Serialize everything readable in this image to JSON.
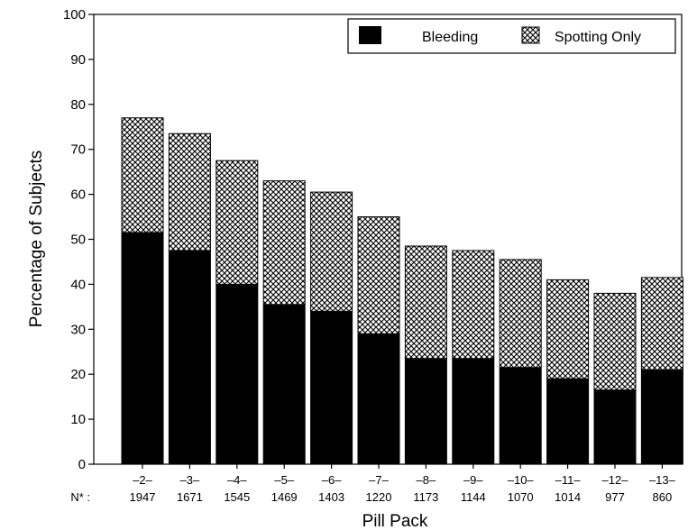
{
  "chart_data": {
    "type": "bar",
    "stacked": true,
    "categories": [
      "–2–",
      "–3–",
      "–4–",
      "–5–",
      "–6–",
      "–7–",
      "–8–",
      "–9–",
      "–10–",
      "–11–",
      "–12–",
      "–13–"
    ],
    "n_label": "N* :",
    "n_values": [
      "1947",
      "1671",
      "1545",
      "1469",
      "1403",
      "1220",
      "1173",
      "1144",
      "1070",
      "1014",
      "977",
      "860"
    ],
    "series": [
      {
        "name": "Bleeding",
        "values": [
          51.5,
          47.5,
          40,
          35.5,
          34,
          29,
          23.5,
          23.5,
          21.5,
          19,
          16.5,
          21
        ],
        "color": "#000000"
      },
      {
        "name": "Spotting Only",
        "values": [
          25.5,
          26,
          27.5,
          27.5,
          26.5,
          26,
          25,
          24,
          24,
          22,
          21.5,
          20.5
        ],
        "pattern": "crosshatch"
      }
    ],
    "title": "",
    "xlabel": "Pill Pack",
    "ylabel": "Percentage of Subjects",
    "ylim": [
      0,
      100
    ],
    "yticks": [
      0,
      10,
      20,
      30,
      40,
      50,
      60,
      70,
      80,
      90,
      100
    ],
    "grid": false,
    "legend_position": "top-right"
  }
}
